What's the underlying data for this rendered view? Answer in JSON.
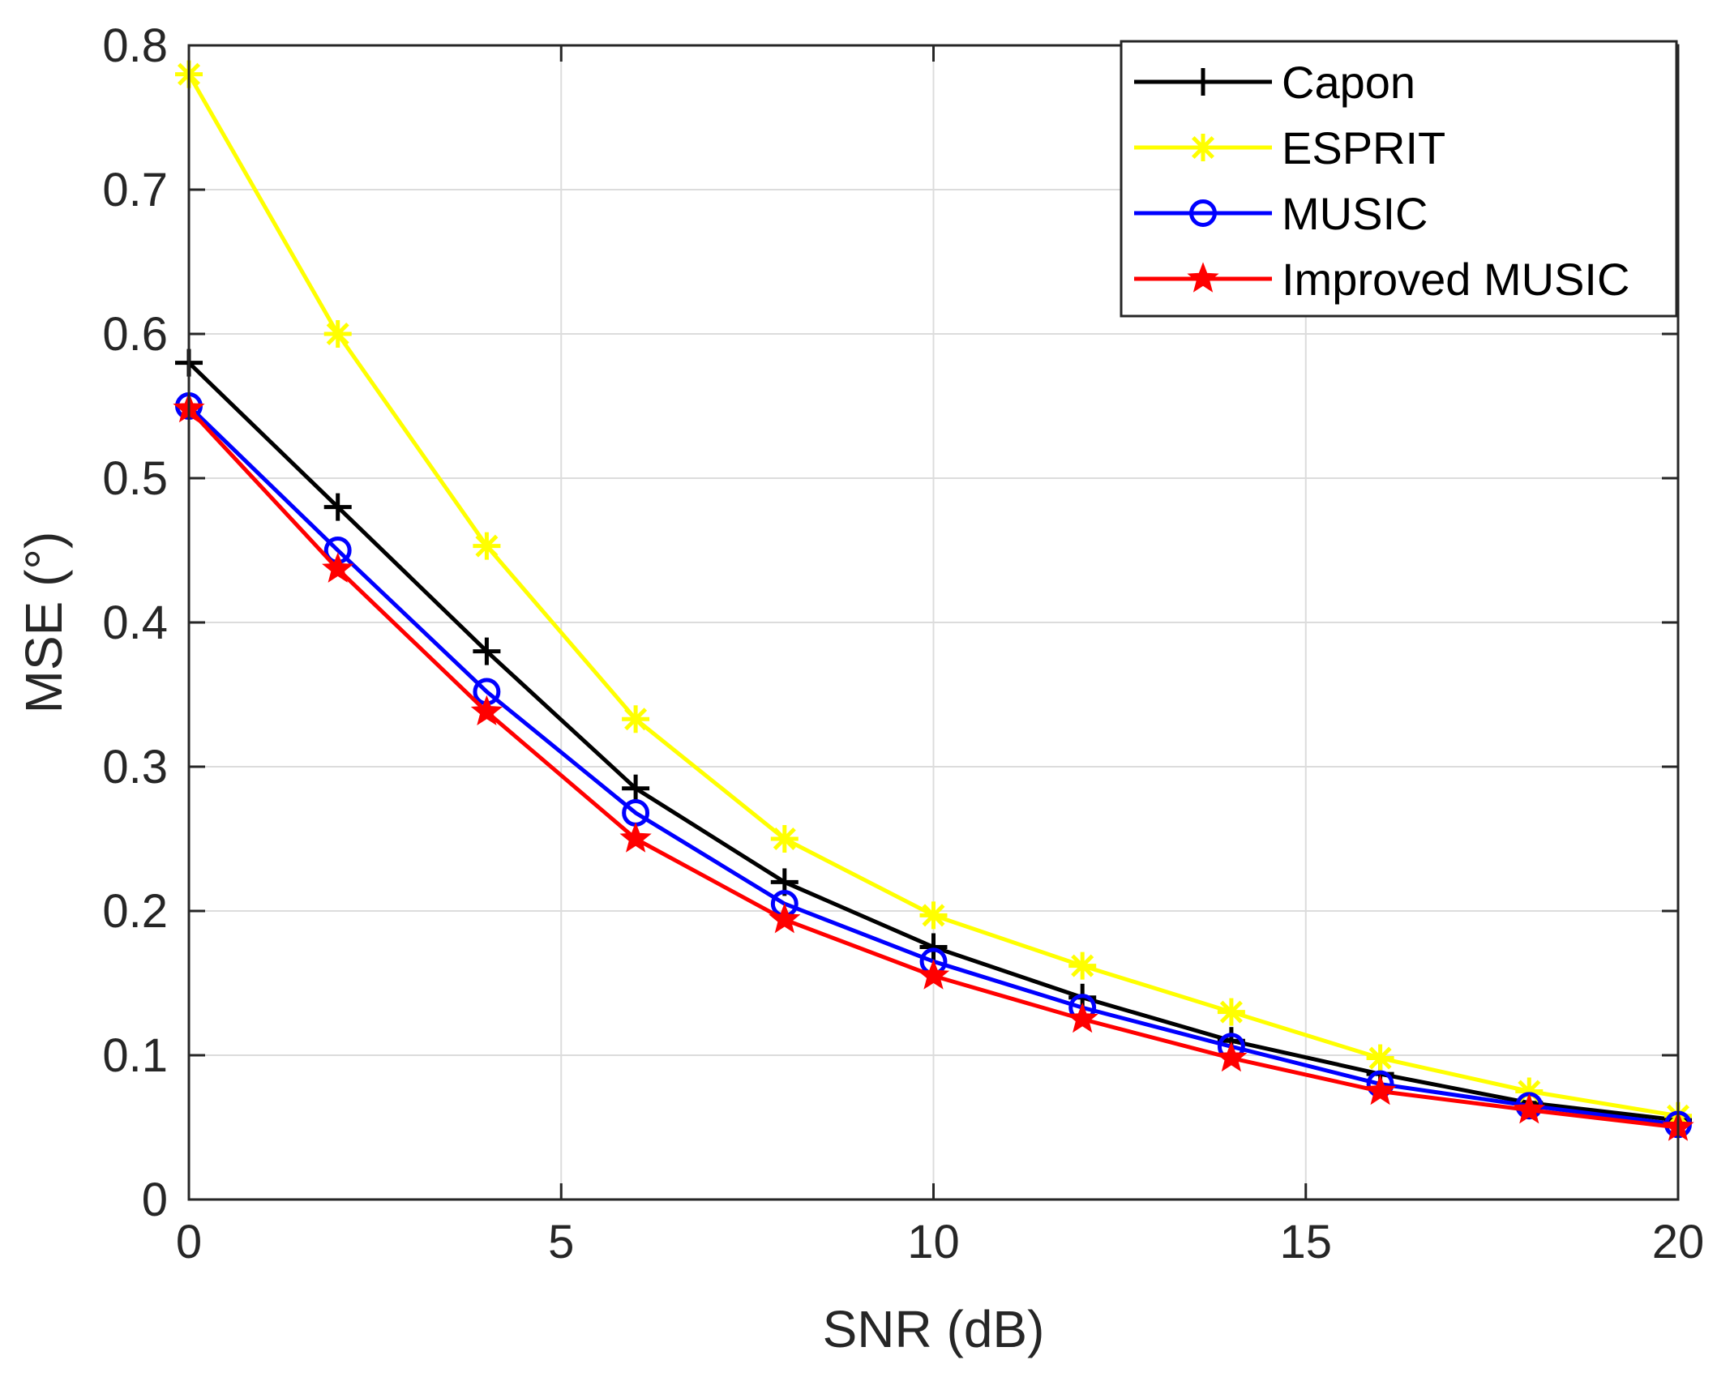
{
  "chart_data": {
    "type": "line",
    "title": "",
    "xlabel": "SNR (dB)",
    "ylabel": "MSE (°)",
    "xlim": [
      0,
      20
    ],
    "ylim": [
      0,
      0.8
    ],
    "xticks": [
      0,
      5,
      10,
      15,
      20
    ],
    "xtick_labels": [
      "0",
      "5",
      "10",
      "15",
      "20"
    ],
    "yticks": [
      0,
      0.1,
      0.2,
      0.3,
      0.4,
      0.5,
      0.6,
      0.7,
      0.8
    ],
    "ytick_labels": [
      "0",
      "0.1",
      "0.2",
      "0.3",
      "0.4",
      "0.5",
      "0.6",
      "0.7",
      "0.8"
    ],
    "grid": true,
    "legend_position": "top-right",
    "x": [
      0,
      2,
      4,
      6,
      8,
      10,
      12,
      14,
      16,
      18,
      20
    ],
    "series": [
      {
        "name": "Capon",
        "color": "#000000",
        "marker": "plus",
        "values": [
          0.58,
          0.48,
          0.38,
          0.285,
          0.22,
          0.175,
          0.14,
          0.11,
          0.087,
          0.067,
          0.055
        ]
      },
      {
        "name": "ESPRIT",
        "color": "#ffff00",
        "marker": "asterisk",
        "values": [
          0.78,
          0.6,
          0.453,
          0.333,
          0.25,
          0.197,
          0.162,
          0.13,
          0.098,
          0.075,
          0.058
        ]
      },
      {
        "name": "MUSIC",
        "color": "#0000ff",
        "marker": "circle",
        "values": [
          0.55,
          0.45,
          0.352,
          0.268,
          0.205,
          0.165,
          0.133,
          0.106,
          0.08,
          0.065,
          0.052
        ]
      },
      {
        "name": "Improved MUSIC",
        "color": "#ff0000",
        "marker": "star",
        "values": [
          0.548,
          0.437,
          0.338,
          0.25,
          0.194,
          0.155,
          0.125,
          0.098,
          0.075,
          0.062,
          0.05
        ]
      }
    ]
  }
}
